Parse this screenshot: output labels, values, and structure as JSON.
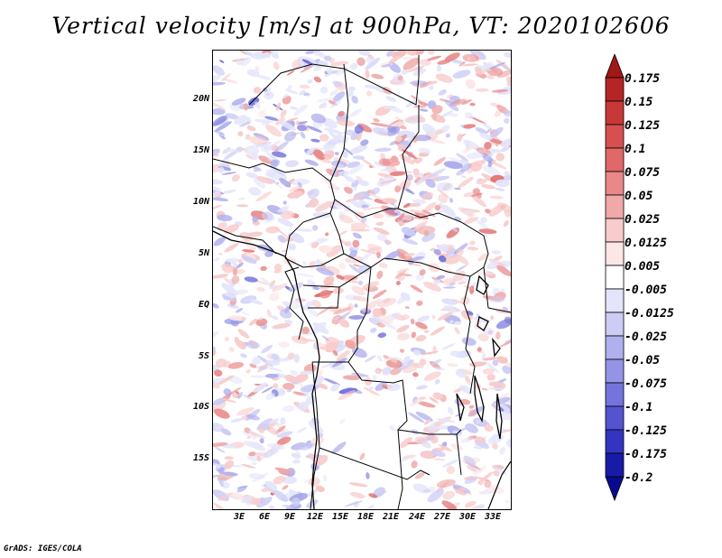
{
  "title": "Vertical velocity [m/s] at 900hPa, VT: 2020102606",
  "footer": "GrADS: IGES/COLA",
  "map": {
    "lat_labels": [
      "20N",
      "15N",
      "10N",
      "5N",
      "EQ",
      "5S",
      "10S",
      "15S"
    ],
    "lon_labels": [
      "3E",
      "6E",
      "9E",
      "12E",
      "15E",
      "18E",
      "21E",
      "24E",
      "27E",
      "30E",
      "33E"
    ]
  },
  "colorbar": {
    "labels": [
      "0.175",
      "0.15",
      "0.125",
      "0.1",
      "0.075",
      "0.05",
      "0.025",
      "0.0125",
      "0.005",
      "-0.005",
      "-0.0125",
      "-0.025",
      "-0.05",
      "-0.075",
      "-0.1",
      "-0.125",
      "-0.175",
      "-0.2"
    ],
    "colors": [
      "#a01818",
      "#b52525",
      "#c83838",
      "#d65050",
      "#e06868",
      "#e88888",
      "#f0a8a8",
      "#f8cccc",
      "#fce6e6",
      "#ffffff",
      "#e4e4fb",
      "#ccccf5",
      "#b0b0ee",
      "#9494e6",
      "#7474dc",
      "#5454d0",
      "#3434c0",
      "#1a1aa8",
      "#0a0a90"
    ]
  }
}
